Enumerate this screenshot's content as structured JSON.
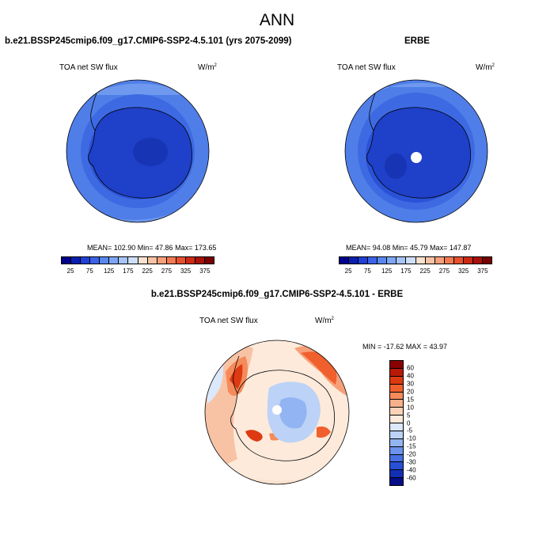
{
  "title": "ANN",
  "panels": [
    {
      "id": "model",
      "title": "b.e21.BSSP245cmip6.f09_g17.CMIP6-SSP2-4.5.101 (yrs 2075-2099)",
      "variable": "TOA net SW flux",
      "units_base": "W/m",
      "units_exp": "2",
      "stats": "MEAN= 102.90  Min=  47.86  Max= 173.65"
    },
    {
      "id": "obs",
      "title": "ERBE",
      "variable": "TOA net SW flux",
      "units_base": "W/m",
      "units_exp": "2",
      "stats": "MEAN=  94.08  Min=  45.79  Max= 147.87"
    },
    {
      "id": "diff",
      "title": "b.e21.BSSP245cmip6.f09_g17.CMIP6-SSP2-4.5.101 - ERBE",
      "variable": "TOA net SW flux",
      "units_base": "W/m",
      "units_exp": "2",
      "stats": "MIN = -17.62 MAX =  43.97"
    }
  ],
  "abs_colorbar": {
    "colors": [
      "#00008b",
      "#0a1fb0",
      "#1f3fd6",
      "#3a63e8",
      "#5a86f0",
      "#7ea6f5",
      "#a6c4f8",
      "#cfdffa",
      "#f9e2cf",
      "#f8c3a5",
      "#f6a07a",
      "#f27a52",
      "#e8502f",
      "#cc2a15",
      "#a8100a",
      "#7a0000"
    ],
    "tick_labels": [
      "25",
      "75",
      "125",
      "175",
      "225",
      "275",
      "325",
      "375"
    ]
  },
  "diff_colorbar": {
    "colors": [
      "#8b0000",
      "#b81a08",
      "#dd3a12",
      "#f0602c",
      "#f58a5a",
      "#f8b08a",
      "#fad2b8",
      "#fdeadb",
      "#dce8fb",
      "#bcd2f7",
      "#93b4f2",
      "#6b92ec",
      "#4670e4",
      "#2750d6",
      "#1230b4",
      "#050e88"
    ],
    "tick_labels": [
      "60",
      "40",
      "30",
      "20",
      "15",
      "10",
      "5",
      "0",
      "-5",
      "-10",
      "-15",
      "-20",
      "-30",
      "-40",
      "-60"
    ]
  }
}
